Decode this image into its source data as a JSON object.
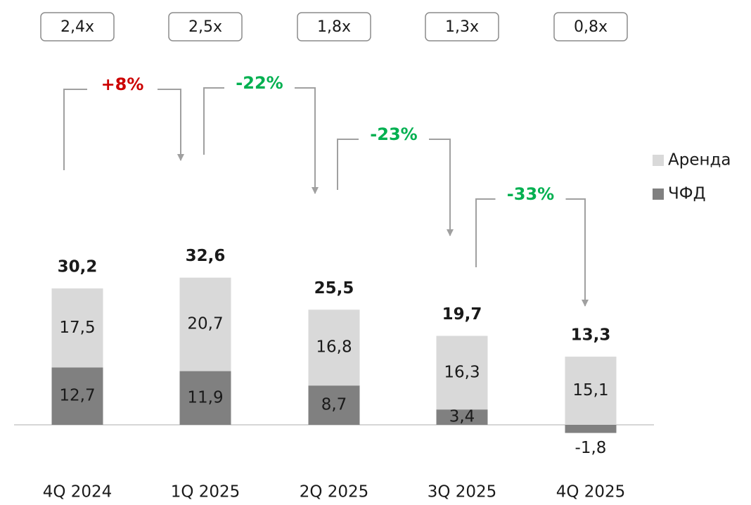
{
  "chart_data": {
    "type": "stacked_bar",
    "categories": [
      "4Q 2024",
      "1Q 2025",
      "2Q 2025",
      "3Q 2025",
      "4Q 2025"
    ],
    "series": [
      {
        "name": "ЧФД",
        "color": "#808080",
        "values": [
          12.7,
          11.9,
          8.7,
          3.4,
          -1.8
        ],
        "value_labels": [
          "12,7",
          "11,9",
          "8,7",
          "3,4",
          "-1,8"
        ]
      },
      {
        "name": "Аренда",
        "color": "#d9d9d9",
        "values": [
          17.5,
          20.7,
          16.8,
          16.3,
          15.1
        ],
        "value_labels": [
          "17,5",
          "20,7",
          "16,8",
          "16,3",
          "15,1"
        ]
      }
    ],
    "totals": {
      "values": [
        30.2,
        32.6,
        25.5,
        19.7,
        13.3
      ],
      "value_labels": [
        "30,2",
        "32,6",
        "25,5",
        "19,7",
        "13,3"
      ]
    },
    "multiples": [
      "2,4x",
      "2,5x",
      "1,8x",
      "1,3x",
      "0,8x"
    ],
    "changes": [
      {
        "label": "+8%",
        "color": "#cc0000"
      },
      {
        "label": "-22%",
        "color": "#00b050"
      },
      {
        "label": "-23%",
        "color": "#00b050"
      },
      {
        "label": "-33%",
        "color": "#00b050"
      }
    ]
  }
}
